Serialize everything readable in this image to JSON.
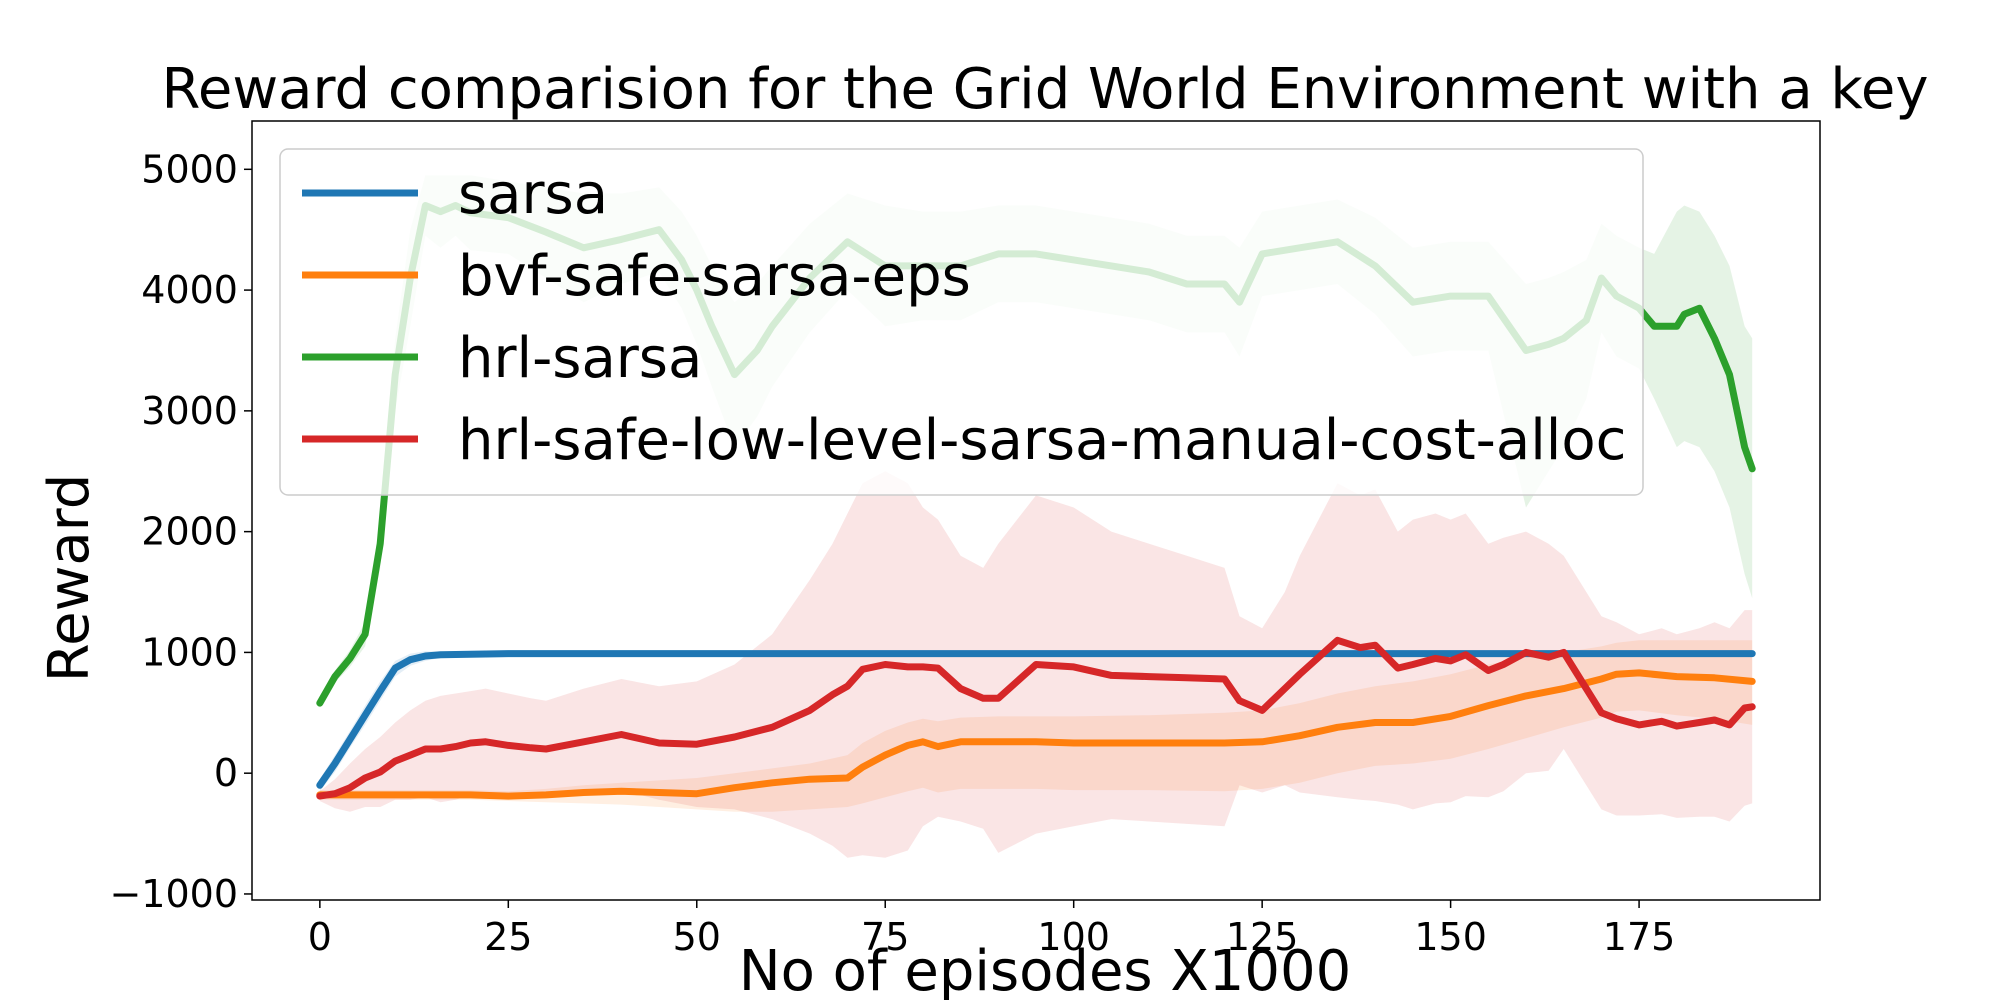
{
  "chart_data": {
    "type": "line",
    "title": "Reward comparision for the Grid World Environment with a key",
    "xlabel": "No of episodes X1000",
    "ylabel": "Reward",
    "xlim": [
      -9,
      199
    ],
    "ylim": [
      -1050,
      5400
    ],
    "xticks": [
      0,
      25,
      50,
      75,
      100,
      125,
      150,
      175
    ],
    "yticks": [
      -1000,
      0,
      1000,
      2000,
      3000,
      4000,
      5000
    ],
    "ytick_labels": [
      "−1000",
      "0",
      "1000",
      "2000",
      "3000",
      "4000",
      "5000"
    ],
    "legend_position": "upper-left",
    "series": [
      {
        "name": "sarsa",
        "color": "#1f77b4",
        "x": [
          0,
          2,
          4,
          6,
          8,
          10,
          12,
          14,
          16,
          20,
          25,
          30,
          40,
          50,
          75,
          100,
          125,
          150,
          175,
          190
        ],
        "y": [
          -100,
          80,
          280,
          480,
          680,
          870,
          940,
          970,
          980,
          985,
          990,
          990,
          990,
          990,
          990,
          990,
          990,
          990,
          990,
          990
        ],
        "band_upper": [
          -50,
          150,
          350,
          560,
          760,
          930,
          990,
          1010,
          1005,
          1000,
          1000,
          1000,
          1000,
          1000,
          1000,
          1000,
          1000,
          1000,
          1000,
          1000
        ],
        "band_lower": [
          -150,
          10,
          210,
          400,
          600,
          800,
          890,
          930,
          955,
          970,
          980,
          985,
          985,
          985,
          985,
          985,
          985,
          985,
          985,
          985
        ]
      },
      {
        "name": "bvf-safe-sarsa-eps",
        "color": "#ff7f0e",
        "x": [
          0,
          10,
          20,
          25,
          30,
          35,
          40,
          45,
          50,
          55,
          60,
          65,
          70,
          72,
          75,
          78,
          80,
          82,
          85,
          90,
          95,
          100,
          110,
          120,
          125,
          130,
          135,
          140,
          145,
          150,
          155,
          160,
          165,
          170,
          172,
          175,
          180,
          185,
          190
        ],
        "y": [
          -180,
          -180,
          -180,
          -190,
          -180,
          -160,
          -150,
          -160,
          -170,
          -120,
          -80,
          -50,
          -40,
          50,
          150,
          230,
          260,
          220,
          260,
          260,
          260,
          250,
          250,
          250,
          260,
          310,
          380,
          420,
          420,
          470,
          560,
          640,
          700,
          780,
          820,
          830,
          800,
          790,
          760
        ],
        "band_upper": [
          -140,
          -140,
          -140,
          -150,
          -130,
          -100,
          -80,
          -60,
          -40,
          0,
          40,
          80,
          150,
          250,
          350,
          420,
          450,
          430,
          460,
          470,
          470,
          470,
          480,
          500,
          520,
          580,
          660,
          720,
          760,
          820,
          900,
          960,
          1000,
          1050,
          1080,
          1100,
          1100,
          1100,
          1100
        ],
        "band_lower": [
          -220,
          -220,
          -220,
          -230,
          -240,
          -250,
          -260,
          -280,
          -300,
          -320,
          -320,
          -300,
          -280,
          -250,
          -200,
          -150,
          -120,
          -160,
          -130,
          -130,
          -130,
          -140,
          -140,
          -150,
          -130,
          -80,
          0,
          60,
          80,
          120,
          200,
          290,
          380,
          460,
          510,
          520,
          480,
          450,
          400
        ]
      },
      {
        "name": "hrl-sarsa",
        "color": "#2ca02c",
        "x": [
          0,
          2,
          4,
          6,
          8,
          10,
          12,
          14,
          16,
          18,
          20,
          25,
          30,
          35,
          40,
          45,
          48,
          50,
          52,
          55,
          58,
          60,
          65,
          70,
          75,
          80,
          85,
          90,
          95,
          100,
          105,
          110,
          115,
          120,
          122,
          125,
          130,
          135,
          140,
          145,
          150,
          155,
          160,
          163,
          165,
          168,
          170,
          172,
          175,
          177,
          180,
          181,
          183,
          185,
          187,
          189,
          190
        ],
        "y": [
          580,
          800,
          950,
          1150,
          1900,
          3300,
          4100,
          4700,
          4650,
          4700,
          4640,
          4600,
          4480,
          4350,
          4420,
          4500,
          4250,
          4000,
          3700,
          3300,
          3500,
          3700,
          4100,
          4400,
          4200,
          4200,
          4200,
          4300,
          4300,
          4250,
          4200,
          4150,
          4050,
          4050,
          3900,
          4300,
          4350,
          4400,
          4200,
          3900,
          3950,
          3950,
          3500,
          3550,
          3600,
          3750,
          4100,
          3950,
          3850,
          3700,
          3700,
          3800,
          3850,
          3600,
          3300,
          2700,
          2520
        ],
        "band_upper": [
          620,
          850,
          1020,
          1250,
          2100,
          3600,
          4500,
          4950,
          4950,
          4950,
          4950,
          4900,
          4850,
          4800,
          4800,
          4850,
          4650,
          4450,
          4200,
          3900,
          4050,
          4200,
          4550,
          4800,
          4700,
          4650,
          4650,
          4700,
          4700,
          4650,
          4600,
          4550,
          4450,
          4450,
          4350,
          4650,
          4700,
          4750,
          4600,
          4350,
          4400,
          4400,
          4050,
          4100,
          4150,
          4250,
          4550,
          4450,
          4350,
          4300,
          4650,
          4700,
          4650,
          4450,
          4200,
          3700,
          3600
        ],
        "band_lower": [
          540,
          750,
          880,
          1050,
          1700,
          3000,
          3700,
          4450,
          4350,
          4450,
          4330,
          4300,
          4100,
          3900,
          4050,
          4150,
          3850,
          3550,
          3200,
          2700,
          2950,
          3200,
          3650,
          4000,
          3700,
          3750,
          3750,
          3900,
          3900,
          3850,
          3800,
          3750,
          3650,
          3650,
          3450,
          3950,
          4000,
          4050,
          3800,
          3450,
          3500,
          3500,
          2200,
          2500,
          2700,
          3100,
          3650,
          3450,
          3350,
          3100,
          2700,
          2750,
          2700,
          2500,
          2200,
          1650,
          1450
        ]
      },
      {
        "name": "hrl-safe-low-level-sarsa-manual-cost-alloc",
        "color": "#d62728",
        "x": [
          0,
          2,
          4,
          6,
          8,
          10,
          12,
          14,
          16,
          18,
          20,
          22,
          25,
          28,
          30,
          35,
          40,
          45,
          50,
          55,
          60,
          65,
          68,
          70,
          72,
          75,
          78,
          80,
          82,
          85,
          88,
          90,
          95,
          100,
          105,
          110,
          115,
          120,
          122,
          125,
          128,
          130,
          135,
          138,
          140,
          143,
          145,
          148,
          150,
          152,
          155,
          157,
          160,
          163,
          165,
          168,
          170,
          172,
          175,
          178,
          180,
          183,
          185,
          187,
          189,
          190
        ],
        "y": [
          -190,
          -170,
          -120,
          -40,
          10,
          100,
          150,
          200,
          200,
          220,
          250,
          260,
          230,
          210,
          200,
          260,
          320,
          250,
          240,
          300,
          380,
          520,
          650,
          720,
          860,
          900,
          880,
          880,
          870,
          700,
          620,
          620,
          900,
          880,
          810,
          800,
          790,
          780,
          600,
          520,
          700,
          820,
          1100,
          1040,
          1060,
          870,
          900,
          950,
          930,
          980,
          850,
          900,
          1000,
          960,
          1000,
          700,
          500,
          450,
          400,
          430,
          390,
          420,
          440,
          400,
          540,
          550
        ],
        "band_upper": [
          -150,
          -50,
          80,
          200,
          300,
          420,
          520,
          600,
          640,
          660,
          680,
          700,
          660,
          620,
          600,
          700,
          780,
          720,
          760,
          900,
          1150,
          1600,
          1900,
          2150,
          2400,
          2500,
          2400,
          2200,
          2100,
          1800,
          1700,
          1900,
          2300,
          2200,
          2000,
          1900,
          1800,
          1700,
          1300,
          1200,
          1500,
          1800,
          2400,
          2300,
          2350,
          2000,
          2100,
          2150,
          2100,
          2150,
          1900,
          1950,
          2000,
          1900,
          1800,
          1500,
          1300,
          1250,
          1150,
          1200,
          1150,
          1200,
          1250,
          1200,
          1350,
          1350
        ],
        "band_lower": [
          -230,
          -290,
          -320,
          -280,
          -280,
          -220,
          -220,
          -200,
          -240,
          -220,
          -180,
          -180,
          -200,
          -200,
          -200,
          -180,
          -140,
          -220,
          -280,
          -300,
          -380,
          -500,
          -600,
          -700,
          -680,
          -700,
          -640,
          -440,
          -360,
          -400,
          -460,
          -660,
          -500,
          -440,
          -380,
          -400,
          -420,
          -440,
          -100,
          -160,
          -100,
          -160,
          -200,
          -220,
          -230,
          -260,
          -300,
          -250,
          -240,
          -190,
          -200,
          -150,
          0,
          20,
          200,
          -100,
          -300,
          -350,
          -350,
          -340,
          -370,
          -360,
          -360,
          -400,
          -270,
          -250
        ]
      }
    ]
  }
}
